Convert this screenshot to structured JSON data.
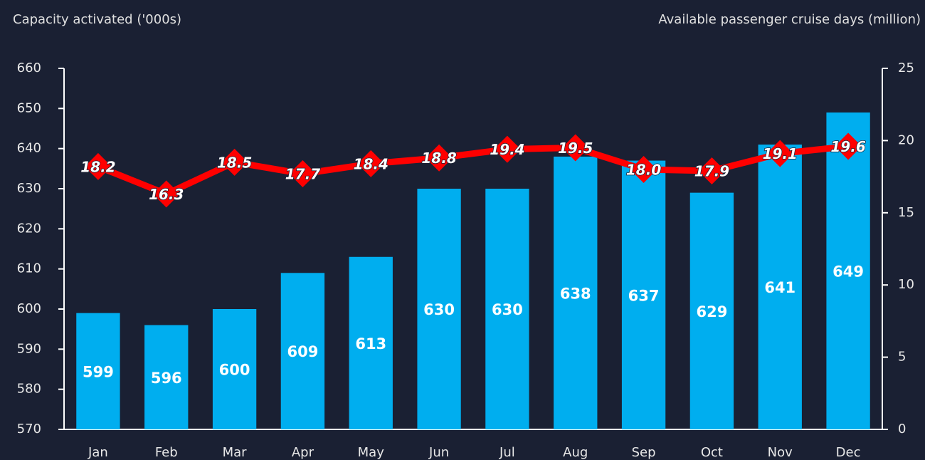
{
  "chart_data": {
    "type": "bar",
    "y_label": "Capacity activated ('000s)",
    "y2_label": "Available passenger cruise days (million)",
    "categories": [
      "Jan",
      "Feb",
      "Mar",
      "Apr",
      "May",
      "Jun",
      "Jul",
      "Aug",
      "Sep",
      "Oct",
      "Nov",
      "Dec"
    ],
    "series": [
      {
        "name": "Capacity activated",
        "type": "bar",
        "color": "#00aeef",
        "values": [
          599,
          596,
          600,
          609,
          613,
          630,
          630,
          638,
          637,
          629,
          641,
          649
        ]
      },
      {
        "name": "Available passenger cruise days",
        "type": "line",
        "axis": "y2",
        "color": "#ff0000",
        "values": [
          18.2,
          16.3,
          18.5,
          17.7,
          18.4,
          18.8,
          19.4,
          19.5,
          18.0,
          17.9,
          19.1,
          19.6
        ],
        "value_labels": [
          "18.2",
          "16.3",
          "18.5",
          "17.7",
          "18.4",
          "18.8",
          "19.4",
          "19.5",
          "18.0",
          "17.9",
          "19.1",
          "19.6"
        ]
      }
    ],
    "ylim": [
      570,
      660
    ],
    "yticks": [
      570,
      580,
      590,
      600,
      610,
      620,
      630,
      640,
      650,
      660
    ],
    "y2lim": [
      0,
      25
    ],
    "y2ticks": [
      0,
      5,
      10,
      15,
      20,
      25
    ]
  }
}
